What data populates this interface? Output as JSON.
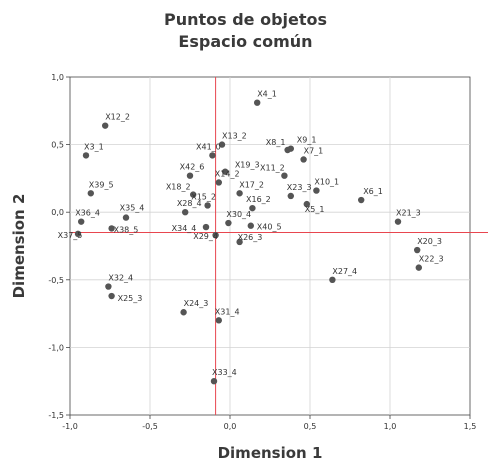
{
  "chart_data": {
    "type": "scatter",
    "title": "Puntos de objetos",
    "subtitle": "Espacio común",
    "xlabel": "Dimension 1",
    "ylabel": "Dimension 2",
    "xlim": [
      -1.0,
      1.5
    ],
    "ylim": [
      -1.5,
      1.0
    ],
    "x_ticks": [
      "-1,0",
      "-0,5",
      "0,0",
      "0,5",
      "1,0",
      "1,5"
    ],
    "y_ticks": [
      "1,0",
      "0,5",
      "0,0",
      "-0,5",
      "-1,0",
      "-1,5"
    ],
    "x_tick_values": [
      -1.0,
      -0.5,
      0.0,
      0.5,
      1.0,
      1.5
    ],
    "y_tick_values": [
      1.0,
      0.5,
      0.0,
      -0.5,
      -1.0,
      -1.5
    ],
    "grid": true,
    "reference_lines": {
      "x": -0.09,
      "y": -0.15,
      "color": "#e8464f"
    },
    "point_color": "#555555",
    "points": [
      {
        "label": "X4_1",
        "x": 0.17,
        "y": 0.81,
        "lx": 0,
        "ly": -6,
        "anchor": "start"
      },
      {
        "label": "X12_2",
        "x": -0.78,
        "y": 0.64,
        "lx": 0,
        "ly": -6,
        "anchor": "start"
      },
      {
        "label": "X13_2",
        "x": -0.05,
        "y": 0.5,
        "lx": 0,
        "ly": -6,
        "anchor": "start"
      },
      {
        "label": "X41_0",
        "x": -0.11,
        "y": 0.42,
        "lx": -4,
        "ly": -6,
        "anchor": "middle"
      },
      {
        "label": "X8_1",
        "x": 0.36,
        "y": 0.46,
        "lx": -12,
        "ly": -5,
        "anchor": "middle"
      },
      {
        "label": "X9_1",
        "x": 0.38,
        "y": 0.47,
        "lx": 6,
        "ly": -6,
        "anchor": "start"
      },
      {
        "label": "X3_1",
        "x": -0.9,
        "y": 0.42,
        "lx": -2,
        "ly": -6,
        "anchor": "start"
      },
      {
        "label": "X7_1",
        "x": 0.46,
        "y": 0.39,
        "lx": 0,
        "ly": -6,
        "anchor": "start"
      },
      {
        "label": "X42_6",
        "x": -0.25,
        "y": 0.27,
        "lx": 2,
        "ly": -6,
        "anchor": "middle"
      },
      {
        "label": "X19_3",
        "x": -0.03,
        "y": 0.3,
        "lx": 22,
        "ly": -4,
        "anchor": "middle"
      },
      {
        "label": "X14_2",
        "x": -0.07,
        "y": 0.22,
        "lx": -4,
        "ly": -6,
        "anchor": "start"
      },
      {
        "label": "X39_5",
        "x": -0.87,
        "y": 0.14,
        "lx": -2,
        "ly": -6,
        "anchor": "start"
      },
      {
        "label": "X11_2",
        "x": 0.34,
        "y": 0.27,
        "lx": -12,
        "ly": -5,
        "anchor": "middle"
      },
      {
        "label": "X10_1",
        "x": 0.54,
        "y": 0.16,
        "lx": -2,
        "ly": -6,
        "anchor": "start"
      },
      {
        "label": "X18_2",
        "x": -0.23,
        "y": 0.13,
        "lx": -15,
        "ly": -5,
        "anchor": "middle"
      },
      {
        "label": "X17_2",
        "x": 0.06,
        "y": 0.14,
        "lx": 12,
        "ly": -6,
        "anchor": "middle"
      },
      {
        "label": "X23_3",
        "x": 0.38,
        "y": 0.12,
        "lx": -4,
        "ly": -6,
        "anchor": "start"
      },
      {
        "label": "X6_1",
        "x": 0.82,
        "y": 0.09,
        "lx": 2,
        "ly": -6,
        "anchor": "start"
      },
      {
        "label": "X15_2",
        "x": -0.14,
        "y": 0.05,
        "lx": -4,
        "ly": -6,
        "anchor": "middle"
      },
      {
        "label": "X28_4",
        "x": -0.28,
        "y": 0.0,
        "lx": 4,
        "ly": -6,
        "anchor": "middle"
      },
      {
        "label": "X16_2",
        "x": 0.14,
        "y": 0.03,
        "lx": 6,
        "ly": -6,
        "anchor": "middle"
      },
      {
        "label": "X35_4",
        "x": -0.65,
        "y": -0.04,
        "lx": 6,
        "ly": -7,
        "anchor": "middle"
      },
      {
        "label": "X5_1",
        "x": 0.48,
        "y": 0.06,
        "lx": -2,
        "ly": 8,
        "anchor": "start"
      },
      {
        "label": "X36_4",
        "x": -0.93,
        "y": -0.07,
        "lx": -6,
        "ly": -6,
        "anchor": "start"
      },
      {
        "label": "X30_4",
        "x": -0.01,
        "y": -0.08,
        "lx": -2,
        "ly": -6,
        "anchor": "start"
      },
      {
        "label": "X34_4",
        "x": -0.15,
        "y": -0.11,
        "lx": -22,
        "ly": 4,
        "anchor": "middle"
      },
      {
        "label": "X21_3",
        "x": 1.05,
        "y": -0.07,
        "lx": -2,
        "ly": -6,
        "anchor": "start"
      },
      {
        "label": "X38_5",
        "x": -0.74,
        "y": -0.12,
        "lx": 2,
        "ly": 4,
        "anchor": "start"
      },
      {
        "label": "X40_5",
        "x": 0.13,
        "y": -0.1,
        "lx": 6,
        "ly": 4,
        "anchor": "start"
      },
      {
        "label": "X37_5",
        "x": -0.95,
        "y": -0.16,
        "lx": -8,
        "ly": 4,
        "anchor": "middle"
      },
      {
        "label": "X29_4",
        "x": -0.09,
        "y": -0.17,
        "lx": -10,
        "ly": 4,
        "anchor": "middle"
      },
      {
        "label": "X26_3",
        "x": 0.06,
        "y": -0.22,
        "lx": -2,
        "ly": -2,
        "anchor": "start"
      },
      {
        "label": "X20_3",
        "x": 1.17,
        "y": -0.28,
        "lx": 0,
        "ly": -6,
        "anchor": "start"
      },
      {
        "label": "X22_3",
        "x": 1.18,
        "y": -0.41,
        "lx": 0,
        "ly": -6,
        "anchor": "start"
      },
      {
        "label": "X27_4",
        "x": 0.64,
        "y": -0.5,
        "lx": 0,
        "ly": -6,
        "anchor": "start"
      },
      {
        "label": "X32_4",
        "x": -0.76,
        "y": -0.55,
        "lx": 0,
        "ly": -6,
        "anchor": "start"
      },
      {
        "label": "X25_3",
        "x": -0.74,
        "y": -0.62,
        "lx": 6,
        "ly": 5,
        "anchor": "start"
      },
      {
        "label": "X24_3",
        "x": -0.29,
        "y": -0.74,
        "lx": 0,
        "ly": -6,
        "anchor": "start"
      },
      {
        "label": "X31_4",
        "x": -0.07,
        "y": -0.8,
        "lx": -4,
        "ly": -6,
        "anchor": "start"
      },
      {
        "label": "X33_4",
        "x": -0.1,
        "y": -1.25,
        "lx": -2,
        "ly": -6,
        "anchor": "start"
      }
    ]
  }
}
